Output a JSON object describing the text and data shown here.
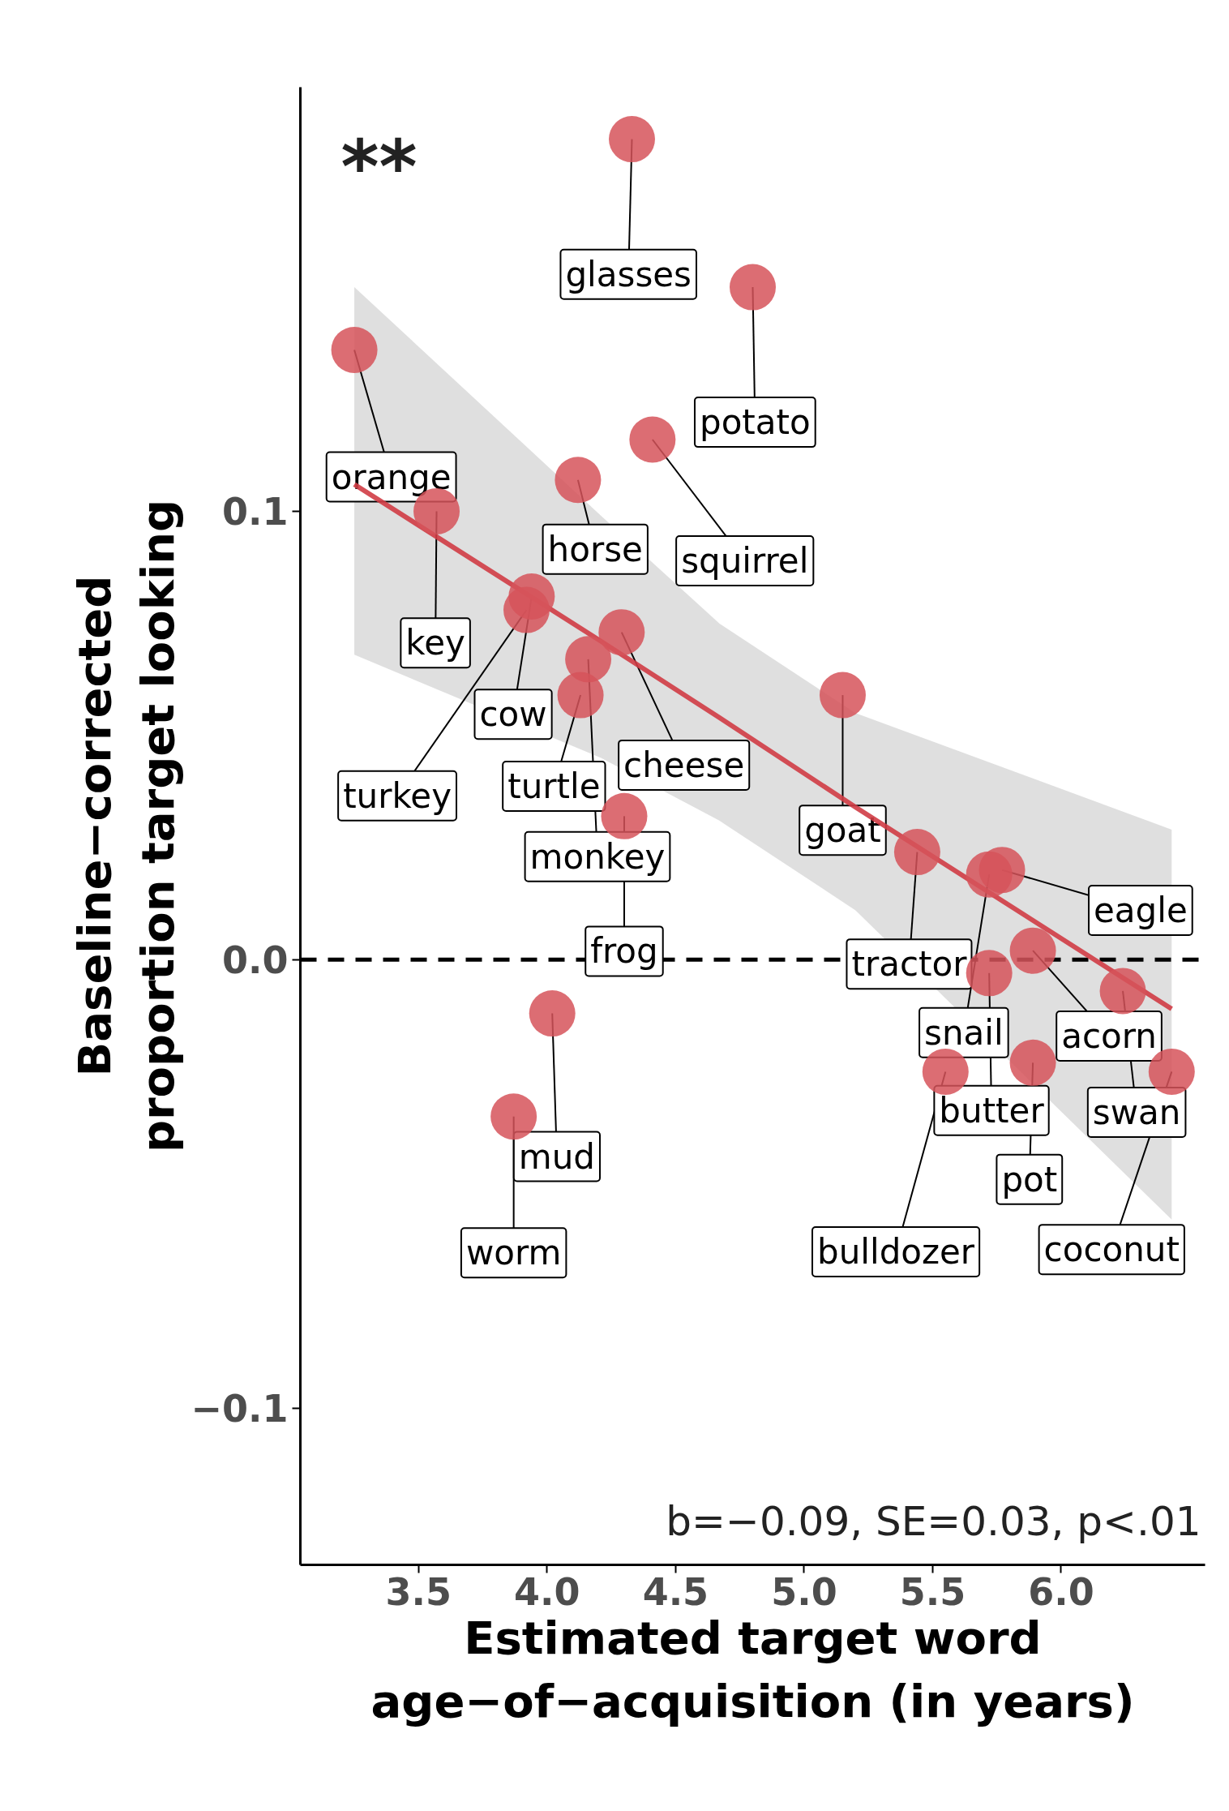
{
  "chart_data": {
    "type": "scatter",
    "xlabel": "Estimated target word\nage−of−acquisition (in years)",
    "ylabel": "Baseline−corrected\nproportion target looking",
    "xlim": [
      3.04,
      6.56
    ],
    "ylim": [
      -0.135,
      0.1946
    ],
    "xticks": [
      3.5,
      {
        "value": 4.0,
        "label": "4.0"
      },
      4.5,
      {
        "value": 5.0,
        "label": "5.0"
      },
      5.5,
      {
        "value": 6.0,
        "label": "6.0"
      }
    ],
    "yticks": [
      {
        "value": -0.1,
        "label": "−0.1"
      },
      {
        "value": 0.0,
        "label": "0.0"
      },
      0.1
    ],
    "grid": false,
    "marker": "circle",
    "series": [
      {
        "color": "#d6545a",
        "x": [
          4.33,
          4.8,
          3.25,
          4.41,
          4.12,
          3.57,
          3.94,
          3.92,
          4.29,
          4.13,
          4.16,
          4.3,
          5.15,
          5.44,
          5.72,
          5.77,
          5.89,
          5.72,
          6.24,
          5.89,
          5.55,
          6.43,
          4.02,
          3.87
        ],
        "values": [
          0.183,
          0.15,
          0.136,
          0.116,
          0.107,
          0.1,
          0.081,
          0.078,
          0.073,
          0.059,
          0.067,
          0.032,
          0.059,
          0.024,
          0.019,
          0.02,
          0.002,
          -0.003,
          -0.007,
          -0.023,
          -0.025,
          -0.025,
          -0.012,
          -0.035
        ]
      },
      {
        "type": "line",
        "marker": "none",
        "color": "#d03c45",
        "x": [
          3.25,
          4.21,
          4.67,
          5.2,
          6.43
        ],
        "values": [
          0.106,
          0.071,
          0.054,
          0.034,
          -0.011
        ],
        "lower": [
          0.068,
          0.045,
          0.031,
          0.011,
          -0.058
        ],
        "upper": [
          0.15,
          0.099,
          0.075,
          0.055,
          0.029
        ]
      }
    ],
    "ref_lines": [
      {
        "axis": "y",
        "value": 0,
        "line_style": "dashed",
        "color": "#000000"
      }
    ],
    "annotations": [
      {
        "text": "glasses",
        "x": 4.33,
        "y": 0.183
      },
      {
        "text": "potato",
        "x": 4.8,
        "y": 0.15
      },
      {
        "text": "orange",
        "x": 3.25,
        "y": 0.136
      },
      {
        "text": "squirrel",
        "x": 4.41,
        "y": 0.116
      },
      {
        "text": "horse",
        "x": 4.12,
        "y": 0.107
      },
      {
        "text": "key",
        "x": 3.57,
        "y": 0.1
      },
      {
        "text": "cow",
        "x": 3.94,
        "y": 0.081
      },
      {
        "text": "turkey",
        "x": 3.92,
        "y": 0.078
      },
      {
        "text": "cheese",
        "x": 4.29,
        "y": 0.073
      },
      {
        "text": "turtle",
        "x": 4.13,
        "y": 0.059
      },
      {
        "text": "monkey",
        "x": 4.16,
        "y": 0.067
      },
      {
        "text": "frog",
        "x": 4.3,
        "y": 0.032
      },
      {
        "text": "goat",
        "x": 5.15,
        "y": 0.059
      },
      {
        "text": "tractor",
        "x": 5.44,
        "y": 0.024
      },
      {
        "text": "snail",
        "x": 5.72,
        "y": 0.019
      },
      {
        "text": "eagle",
        "x": 5.77,
        "y": 0.02
      },
      {
        "text": "acorn",
        "x": 5.89,
        "y": 0.002
      },
      {
        "text": "butter",
        "x": 5.72,
        "y": -0.003
      },
      {
        "text": "swan",
        "x": 6.24,
        "y": -0.007
      },
      {
        "text": "pot",
        "x": 5.89,
        "y": -0.023
      },
      {
        "text": "bulldozer",
        "x": 5.55,
        "y": -0.025
      },
      {
        "text": "coconut",
        "x": 6.43,
        "y": -0.025
      },
      {
        "text": "mud",
        "x": 4.02,
        "y": -0.012
      },
      {
        "text": "worm",
        "x": 3.87,
        "y": -0.035
      },
      "**",
      "b=−0.09, SE=0.03, p<.01"
    ]
  }
}
